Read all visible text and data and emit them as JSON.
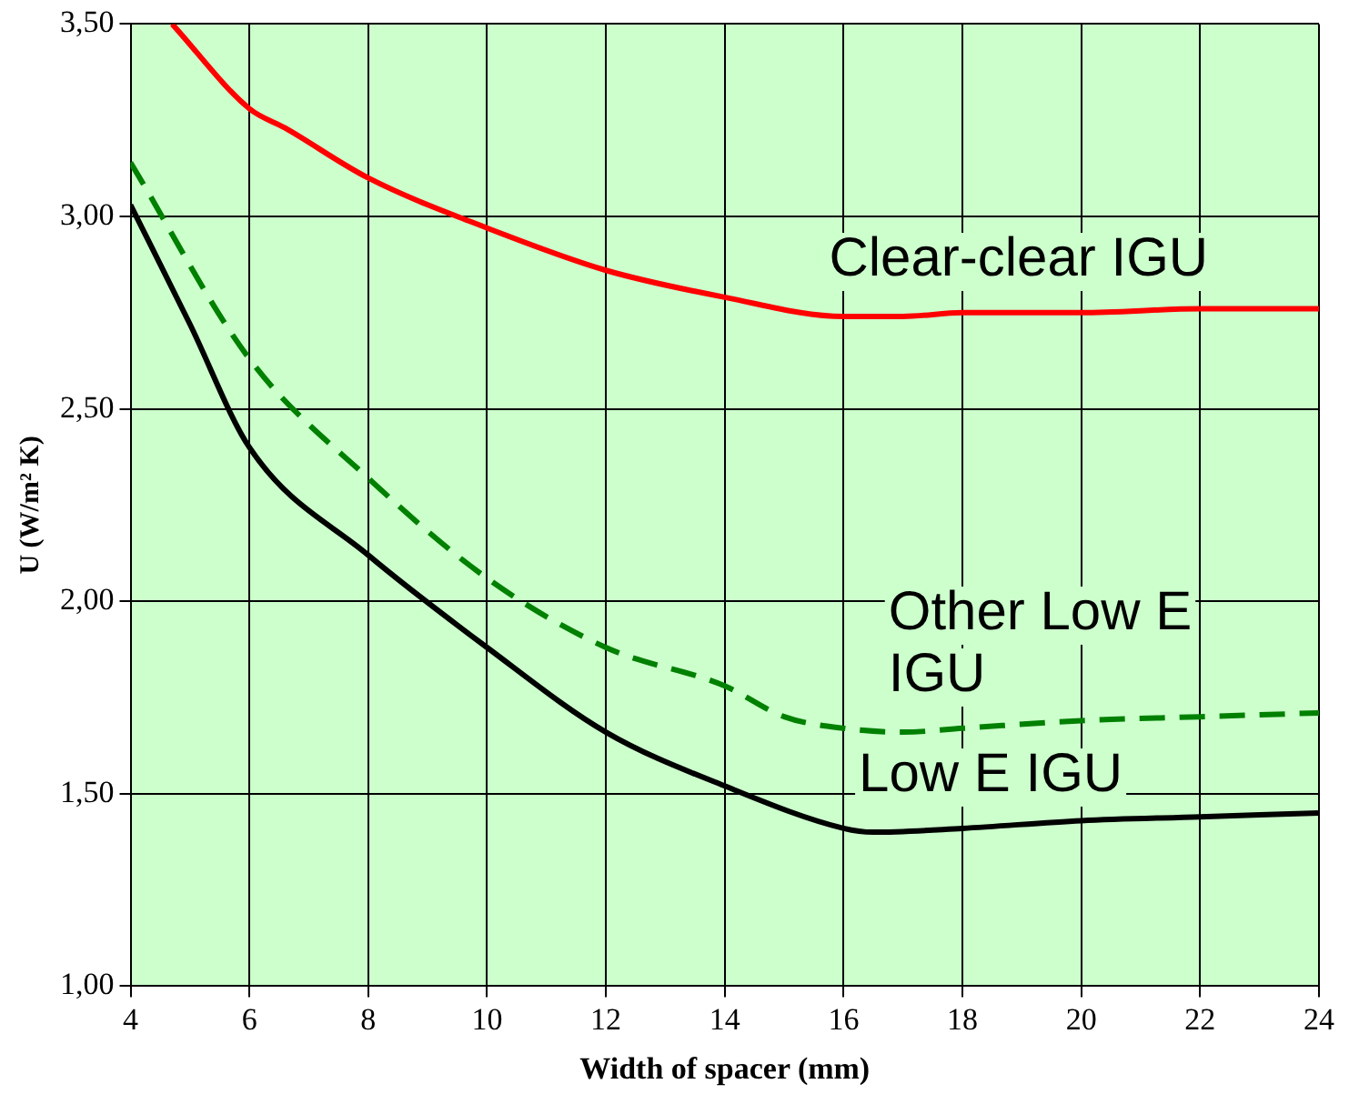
{
  "chart_data": {
    "type": "line",
    "xlabel": "Width of spacer (mm)",
    "ylabel": "U (W/m² K)",
    "xlim": [
      4,
      24
    ],
    "xticks": [
      4,
      6,
      8,
      10,
      12,
      14,
      16,
      18,
      20,
      22,
      24
    ],
    "ylim": [
      1,
      3.5
    ],
    "yticks": [
      {
        "value": 1,
        "label": "1,00"
      },
      {
        "value": 1.5,
        "label": "1,50"
      },
      {
        "value": 2,
        "label": "2,00"
      },
      {
        "value": 2.5,
        "label": "2,50"
      },
      {
        "value": 3,
        "label": "3,00"
      },
      {
        "value": 3.5,
        "label": "3,50"
      }
    ],
    "grid": true,
    "legend": false,
    "marker": "none",
    "series": [
      {
        "name": "Clear-clear IGU",
        "color": "#ff0000",
        "line_style": "solid",
        "x": [
          4.7,
          6,
          6.6,
          8,
          10,
          12,
          14,
          16,
          17,
          18,
          20,
          22,
          24
        ],
        "values": [
          3.5,
          3.28,
          3.23,
          3.1,
          2.97,
          2.86,
          2.79,
          2.74,
          2.74,
          2.75,
          2.75,
          2.76,
          2.76
        ]
      },
      {
        "name": "Other Low E IGU",
        "color": "#008000",
        "line_style": "dashed",
        "x": [
          4,
          6,
          8,
          10,
          12,
          14,
          15,
          16,
          17,
          18,
          20,
          22,
          24
        ],
        "values": [
          3.14,
          2.63,
          2.32,
          2.06,
          1.88,
          1.78,
          1.7,
          1.67,
          1.66,
          1.67,
          1.69,
          1.7,
          1.71
        ]
      },
      {
        "name": "Low E IGU",
        "color": "#000000",
        "line_style": "solid",
        "x": [
          4,
          5,
          6,
          8,
          10,
          12,
          14,
          16,
          16.5,
          18,
          20,
          22,
          24
        ],
        "values": [
          3.03,
          2.72,
          2.4,
          2.12,
          1.88,
          1.66,
          1.52,
          1.41,
          1.4,
          1.41,
          1.43,
          1.44,
          1.45
        ]
      }
    ]
  }
}
